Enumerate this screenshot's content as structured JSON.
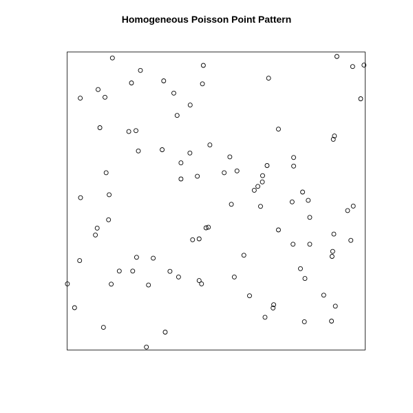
{
  "chart_data": {
    "type": "scatter",
    "title": "Homogeneous Poisson Point Pattern",
    "xlabel": "",
    "ylabel": "",
    "xlim": [
      0,
      1
    ],
    "ylim": [
      0,
      1
    ],
    "axes_visible": false,
    "window_frame": true,
    "grid": false,
    "legend": "none",
    "marker": "open-circle",
    "colors": {
      "points": "#000000",
      "frame": "#333333",
      "title": "#000000"
    },
    "points": [
      [
        0.152,
        0.98
      ],
      [
        0.905,
        0.985
      ],
      [
        0.958,
        0.951
      ],
      [
        0.996,
        0.956
      ],
      [
        0.457,
        0.955
      ],
      [
        0.246,
        0.938
      ],
      [
        0.324,
        0.903
      ],
      [
        0.216,
        0.896
      ],
      [
        0.454,
        0.893
      ],
      [
        0.676,
        0.912
      ],
      [
        0.104,
        0.874
      ],
      [
        0.358,
        0.862
      ],
      [
        0.127,
        0.848
      ],
      [
        0.044,
        0.845
      ],
      [
        0.413,
        0.822
      ],
      [
        0.985,
        0.843
      ],
      [
        0.369,
        0.787
      ],
      [
        0.11,
        0.746
      ],
      [
        0.207,
        0.733
      ],
      [
        0.231,
        0.736
      ],
      [
        0.709,
        0.741
      ],
      [
        0.897,
        0.718
      ],
      [
        0.893,
        0.707
      ],
      [
        0.479,
        0.688
      ],
      [
        0.239,
        0.668
      ],
      [
        0.319,
        0.672
      ],
      [
        0.412,
        0.661
      ],
      [
        0.546,
        0.648
      ],
      [
        0.76,
        0.646
      ],
      [
        0.382,
        0.628
      ],
      [
        0.671,
        0.619
      ],
      [
        0.57,
        0.601
      ],
      [
        0.76,
        0.617
      ],
      [
        0.527,
        0.595
      ],
      [
        0.131,
        0.595
      ],
      [
        0.656,
        0.585
      ],
      [
        0.437,
        0.583
      ],
      [
        0.382,
        0.574
      ],
      [
        0.655,
        0.564
      ],
      [
        0.64,
        0.549
      ],
      [
        0.628,
        0.536
      ],
      [
        0.79,
        0.53
      ],
      [
        0.141,
        0.521
      ],
      [
        0.045,
        0.511
      ],
      [
        0.755,
        0.497
      ],
      [
        0.809,
        0.502
      ],
      [
        0.551,
        0.489
      ],
      [
        0.649,
        0.482
      ],
      [
        0.96,
        0.483
      ],
      [
        0.941,
        0.468
      ],
      [
        0.814,
        0.445
      ],
      [
        0.139,
        0.437
      ],
      [
        0.466,
        0.41
      ],
      [
        0.474,
        0.412
      ],
      [
        0.101,
        0.409
      ],
      [
        0.709,
        0.403
      ],
      [
        0.095,
        0.386
      ],
      [
        0.895,
        0.389
      ],
      [
        0.421,
        0.37
      ],
      [
        0.443,
        0.373
      ],
      [
        0.952,
        0.368
      ],
      [
        0.758,
        0.355
      ],
      [
        0.814,
        0.355
      ],
      [
        0.891,
        0.331
      ],
      [
        0.889,
        0.314
      ],
      [
        0.593,
        0.318
      ],
      [
        0.233,
        0.311
      ],
      [
        0.289,
        0.308
      ],
      [
        0.042,
        0.3
      ],
      [
        0.783,
        0.273
      ],
      [
        0.175,
        0.265
      ],
      [
        0.22,
        0.265
      ],
      [
        0.345,
        0.264
      ],
      [
        0.374,
        0.245
      ],
      [
        0.561,
        0.245
      ],
      [
        0.798,
        0.24
      ],
      [
        0.443,
        0.233
      ],
      [
        0.451,
        0.222
      ],
      [
        0.148,
        0.221
      ],
      [
        0.273,
        0.218
      ],
      [
        0.001,
        0.222
      ],
      [
        0.612,
        0.182
      ],
      [
        0.861,
        0.184
      ],
      [
        0.693,
        0.152
      ],
      [
        0.691,
        0.141
      ],
      [
        0.9,
        0.147
      ],
      [
        0.025,
        0.142
      ],
      [
        0.664,
        0.11
      ],
      [
        0.887,
        0.097
      ],
      [
        0.796,
        0.095
      ],
      [
        0.122,
        0.076
      ],
      [
        0.329,
        0.06
      ],
      [
        0.266,
        0.01
      ]
    ]
  }
}
